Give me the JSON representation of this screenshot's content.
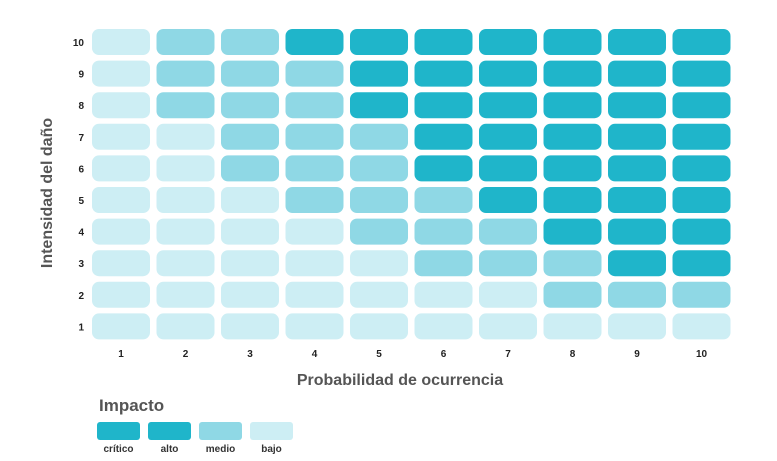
{
  "chart_data": {
    "type": "heatmap",
    "xlabel": "Probabilidad de ocurrencia",
    "ylabel": "Intensidad del daño",
    "x": [
      1,
      2,
      3,
      4,
      5,
      6,
      7,
      8,
      9,
      10
    ],
    "y": [
      1,
      2,
      3,
      4,
      5,
      6,
      7,
      8,
      9,
      10
    ],
    "levels": [
      "crítico",
      "alto",
      "medio",
      "bajo"
    ],
    "rows_top_to_bottom": [
      {
        "y": 10,
        "cells": [
          "bajo",
          "medio",
          "medio",
          "crítico",
          "crítico",
          "crítico",
          "crítico",
          "crítico",
          "crítico",
          "crítico"
        ]
      },
      {
        "y": 9,
        "cells": [
          "bajo",
          "medio",
          "medio",
          "medio",
          "crítico",
          "crítico",
          "crítico",
          "crítico",
          "crítico",
          "crítico"
        ]
      },
      {
        "y": 8,
        "cells": [
          "bajo",
          "medio",
          "medio",
          "medio",
          "crítico",
          "crítico",
          "crítico",
          "crítico",
          "crítico",
          "crítico"
        ]
      },
      {
        "y": 7,
        "cells": [
          "bajo",
          "bajo",
          "medio",
          "medio",
          "medio",
          "crítico",
          "crítico",
          "crítico",
          "crítico",
          "crítico"
        ]
      },
      {
        "y": 6,
        "cells": [
          "bajo",
          "bajo",
          "medio",
          "medio",
          "medio",
          "crítico",
          "crítico",
          "crítico",
          "crítico",
          "crítico"
        ]
      },
      {
        "y": 5,
        "cells": [
          "bajo",
          "bajo",
          "bajo",
          "medio",
          "medio",
          "medio",
          "crítico",
          "crítico",
          "crítico",
          "crítico"
        ]
      },
      {
        "y": 4,
        "cells": [
          "bajo",
          "bajo",
          "bajo",
          "bajo",
          "medio",
          "medio",
          "medio",
          "crítico",
          "crítico",
          "crítico"
        ]
      },
      {
        "y": 3,
        "cells": [
          "bajo",
          "bajo",
          "bajo",
          "bajo",
          "bajo",
          "medio",
          "medio",
          "medio",
          "crítico",
          "crítico"
        ]
      },
      {
        "y": 2,
        "cells": [
          "bajo",
          "bajo",
          "bajo",
          "bajo",
          "bajo",
          "bajo",
          "bajo",
          "medio",
          "medio",
          "medio"
        ]
      },
      {
        "y": 1,
        "cells": [
          "bajo",
          "bajo",
          "bajo",
          "bajo",
          "bajo",
          "bajo",
          "bajo",
          "bajo",
          "bajo",
          "bajo"
        ]
      }
    ]
  },
  "legend": {
    "title": "Impacto",
    "items": [
      {
        "label": "crítico",
        "color": "#1fb5ca"
      },
      {
        "label": "alto",
        "color": "#1fb5ca"
      },
      {
        "label": "medio",
        "color": "#8fd8e5"
      },
      {
        "label": "bajo",
        "color": "#cdeef4"
      }
    ]
  },
  "colors": {
    "crítico": "#1fb5ca",
    "alto": "#1fb5ca",
    "medio": "#8fd8e5",
    "bajo": "#cdeef4"
  }
}
